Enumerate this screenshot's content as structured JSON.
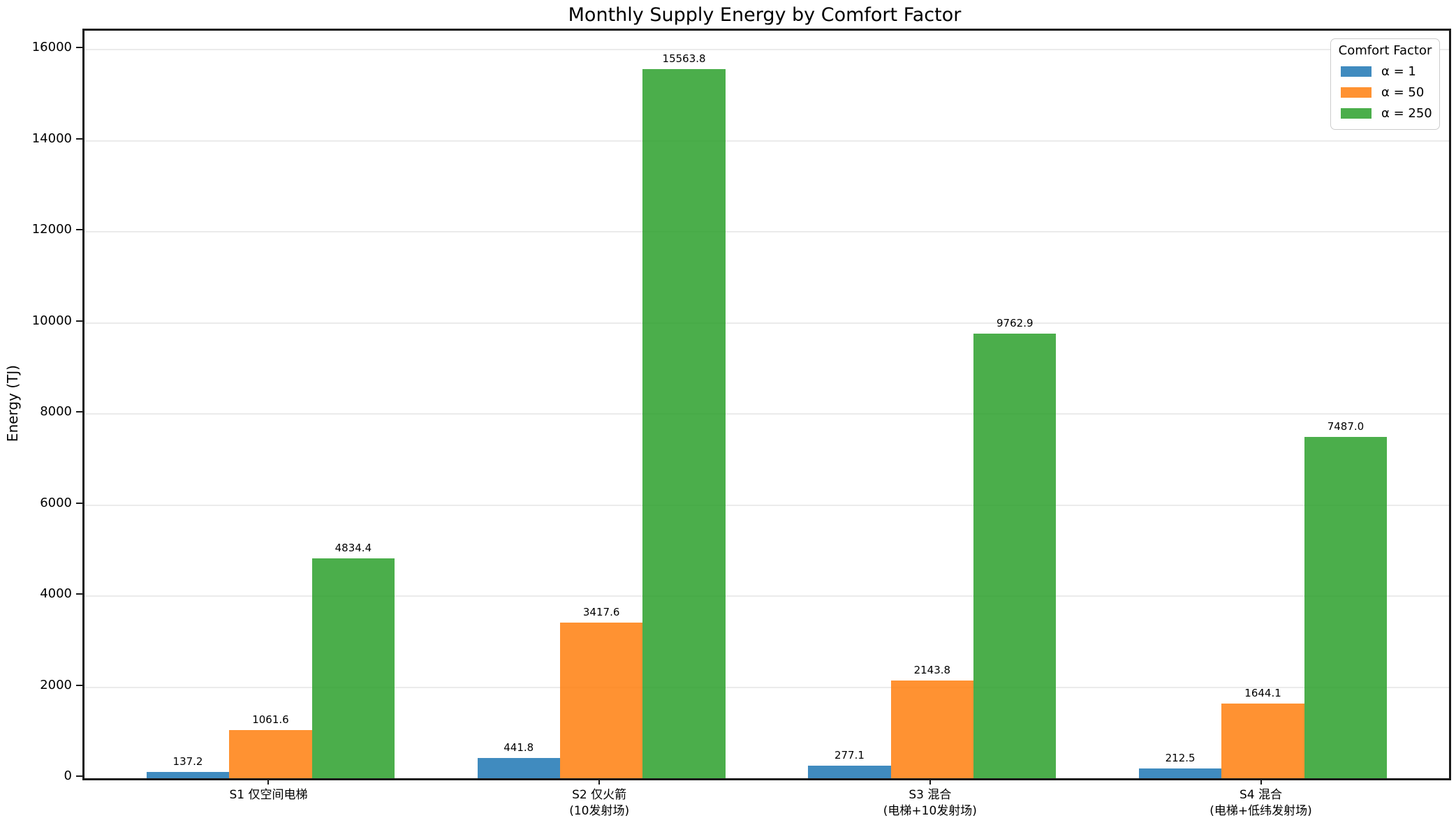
{
  "figure": {
    "title": "Monthly Supply Energy by Comfort Factor",
    "ylabel": "Energy (TJ)"
  },
  "legend": {
    "title": "Comfort Factor",
    "entries": [
      {
        "label": "α = 1",
        "color": "#1f77b4"
      },
      {
        "label": "α = 50",
        "color": "#ff7f0e"
      },
      {
        "label": "α = 250",
        "color": "#2ca02c"
      }
    ]
  },
  "chart_data": {
    "type": "bar",
    "title": "Monthly Supply Energy by Comfort Factor",
    "xlabel": "",
    "ylabel": "Energy (TJ)",
    "categories": [
      "S1 仅空间电梯",
      "S2 仅火箭\n(10发射场)",
      "S3 混合\n(电梯+10发射场)",
      "S4 混合\n(电梯+低纬发射场)"
    ],
    "category_lines": [
      [
        "S1 仅空间电梯"
      ],
      [
        "S2 仅火箭",
        "(10发射场)"
      ],
      [
        "S3 混合",
        "(电梯+10发射场)"
      ],
      [
        "S4 混合",
        "(电梯+低纬发射场)"
      ]
    ],
    "series": [
      {
        "name": "α = 1",
        "color": "#1f77b4",
        "values": [
          137.2,
          441.8,
          277.1,
          212.5
        ]
      },
      {
        "name": "α = 50",
        "color": "#ff7f0e",
        "values": [
          1061.6,
          3417.6,
          2143.8,
          1644.1
        ]
      },
      {
        "name": "α = 250",
        "color": "#2ca02c",
        "values": [
          4834.4,
          15563.8,
          9762.9,
          7487.0
        ]
      }
    ],
    "bar_labels_shown": true,
    "bar_alpha": 0.85,
    "ylim": [
      0,
      16414
    ],
    "yticks": [
      0,
      2000,
      4000,
      6000,
      8000,
      10000,
      12000,
      14000,
      16000
    ],
    "grid": true,
    "grid_color": "#ebebeb",
    "legend_title": "Comfort Factor",
    "legend_position": "upper right"
  }
}
